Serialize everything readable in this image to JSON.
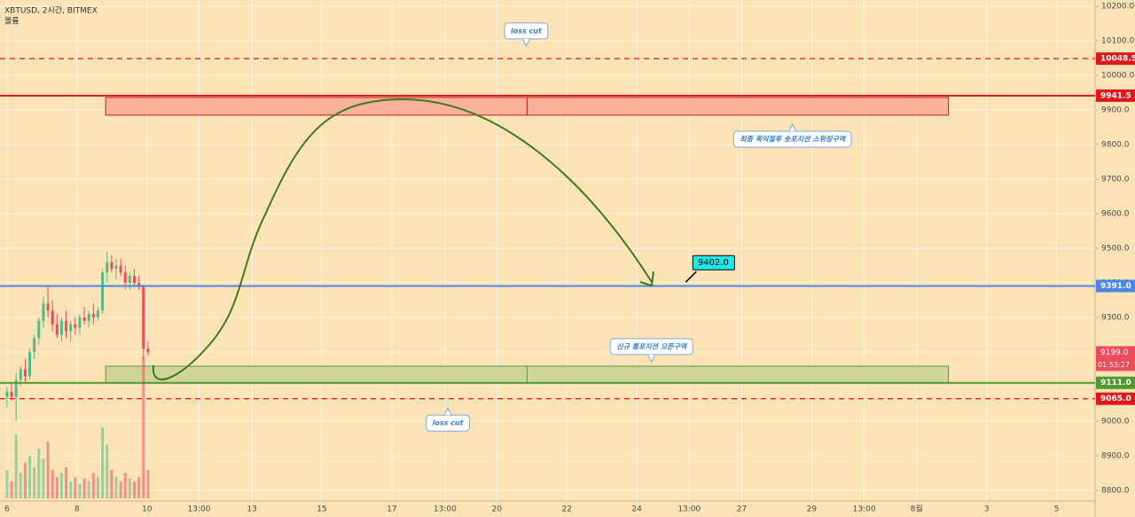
{
  "chart_data": {
    "type": "candlestick",
    "title": "XBTUSD, 2시간, BITMEX",
    "volume_label": "볼륨",
    "x": [
      0.0,
      0.13,
      0.26,
      0.39,
      0.52,
      0.65,
      0.78,
      0.91,
      1.04,
      1.17,
      1.3,
      1.43,
      1.56,
      1.69,
      1.82,
      1.95,
      2.08,
      2.21,
      2.34,
      2.47,
      2.6,
      2.73,
      2.86,
      2.99,
      3.12,
      3.25,
      3.38,
      3.51,
      3.64,
      3.77,
      3.9,
      4.03
    ],
    "open": [
      9070,
      9085,
      9070,
      9120,
      9150,
      9130,
      9200,
      9240,
      9290,
      9340,
      9320,
      9280,
      9250,
      9290,
      9260,
      9280,
      9270,
      9300,
      9290,
      9310,
      9300,
      9320,
      9430,
      9460,
      9440,
      9450,
      9430,
      9400,
      9420,
      9400,
      9390,
      9210
    ],
    "high": [
      9100,
      9110,
      9140,
      9160,
      9180,
      9210,
      9250,
      9300,
      9360,
      9391,
      9350,
      9310,
      9300,
      9320,
      9290,
      9300,
      9310,
      9330,
      9320,
      9340,
      9330,
      9440,
      9490,
      9480,
      9470,
      9470,
      9450,
      9430,
      9440,
      9420,
      9395,
      9230
    ],
    "low": [
      9040,
      9060,
      9000,
      9100,
      9110,
      9120,
      9180,
      9220,
      9270,
      9300,
      9260,
      9240,
      9230,
      9240,
      9230,
      9250,
      9250,
      9280,
      9270,
      9280,
      9290,
      9310,
      9400,
      9430,
      9410,
      9420,
      9380,
      9380,
      9390,
      9380,
      9180,
      9190
    ],
    "close": [
      9085,
      9070,
      9120,
      9150,
      9130,
      9200,
      9240,
      9290,
      9340,
      9320,
      9280,
      9250,
      9290,
      9260,
      9280,
      9270,
      9300,
      9290,
      9310,
      9300,
      9320,
      9430,
      9460,
      9440,
      9450,
      9430,
      9400,
      9420,
      9400,
      9390,
      9210,
      9199
    ],
    "volume": [
      20,
      12,
      45,
      18,
      25,
      30,
      22,
      35,
      28,
      40,
      20,
      15,
      18,
      22,
      12,
      15,
      10,
      14,
      12,
      18,
      15,
      50,
      38,
      20,
      15,
      12,
      18,
      14,
      12,
      15,
      100,
      20
    ],
    "xlim": [
      -0.2,
      31.1
    ],
    "xticks": [
      {
        "value": 0,
        "label": "6"
      },
      {
        "value": 2,
        "label": "8"
      },
      {
        "value": 4,
        "label": "10"
      },
      {
        "value": 5.49,
        "label": "13:00"
      },
      {
        "value": 7,
        "label": "13"
      },
      {
        "value": 9,
        "label": "15"
      },
      {
        "value": 11,
        "label": "17"
      },
      {
        "value": 12.52,
        "label": "13:00"
      },
      {
        "value": 14,
        "label": "20"
      },
      {
        "value": 16,
        "label": "22"
      },
      {
        "value": 18,
        "label": "24"
      },
      {
        "value": 19.5,
        "label": "13:00"
      },
      {
        "value": 21,
        "label": "27"
      },
      {
        "value": 23,
        "label": "29"
      },
      {
        "value": 24.5,
        "label": "13:00"
      },
      {
        "value": 26,
        "label": "8월"
      },
      {
        "value": 28,
        "label": "3"
      },
      {
        "value": 30,
        "label": "5"
      }
    ],
    "ylim": [
      8723,
      10218
    ],
    "yticks": [
      {
        "value": 8800,
        "label": "8800.0"
      },
      {
        "value": 8900,
        "label": "8900.0"
      },
      {
        "value": 9000,
        "label": "9000.0"
      },
      {
        "value": 9100,
        "label": "9100.0"
      },
      {
        "value": 9200,
        "label": "9200.0"
      },
      {
        "value": 9300,
        "label": "9300.0"
      },
      {
        "value": 9400,
        "label": "9400.0"
      },
      {
        "value": 9500,
        "label": "9500.0"
      },
      {
        "value": 9600,
        "label": "9600.0"
      },
      {
        "value": 9700,
        "label": "9700.0"
      },
      {
        "value": 9800,
        "label": "9800.0"
      },
      {
        "value": 9900,
        "label": "9900.0"
      },
      {
        "value": 10000,
        "label": "10000.0"
      },
      {
        "value": 10100,
        "label": "10100.0"
      },
      {
        "value": 10200,
        "label": "10200.0"
      }
    ],
    "grid": true,
    "up_color": "#53b987",
    "down_color": "#eb4d5c",
    "levels": [
      {
        "value": 10048.5,
        "label": "10048.5",
        "color": "#e0161b",
        "style": "dashed"
      },
      {
        "value": 9941.5,
        "label": "9941.5",
        "color": "#e0161b",
        "style": "solid"
      },
      {
        "value": 9391,
        "label": "9391.0",
        "color": "#4a86e8",
        "style": "solid"
      },
      {
        "value": 9111,
        "label": "9111.0",
        "color": "#4e9a2e",
        "style": "solid"
      },
      {
        "value": 9065,
        "label": "9065.0",
        "color": "#e0161b",
        "style": "dashed"
      }
    ],
    "zones": [
      {
        "top": 9936,
        "bottom": 9885,
        "x0": 2.82,
        "x1": 26.91,
        "color": "#f9b39a",
        "border": "#c21b1b"
      },
      {
        "top": 9159,
        "bottom": 9110,
        "x0": 2.82,
        "x1": 26.91,
        "color": "#cfd59a",
        "border": "#5a9a3a"
      }
    ],
    "annotations": [
      {
        "text": "loss cut",
        "x": 14.84,
        "y": 10085,
        "dir": "up"
      },
      {
        "text": "최종 목익절후 숏포지션 스위칭구역",
        "x": 22.45,
        "y": 9859,
        "dir": "down"
      },
      {
        "text": "신규 롱포지션 오픈구역",
        "x": 18.42,
        "y": 9172,
        "dir": "up"
      },
      {
        "text": "loss cut",
        "x": 12.6,
        "y": 9038,
        "dir": "down"
      }
    ],
    "price_note": {
      "value": 9402,
      "label": "9402.0",
      "x": 19.4
    },
    "last_price": {
      "value": 9199,
      "label": "9199.0"
    },
    "countdown": "01:53:27"
  }
}
